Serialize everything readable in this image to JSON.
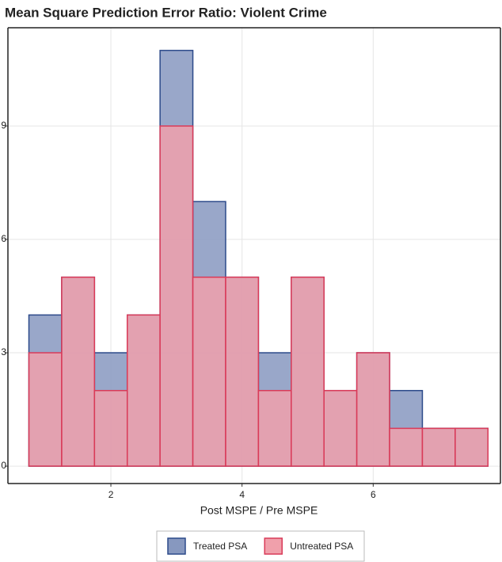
{
  "chart_data": {
    "type": "histogram",
    "title": "Mean Square Prediction Error Ratio: Violent Crime",
    "x_label": "Post MSPE / Pre MSPE",
    "bins": [
      0.75,
      1.25,
      1.75,
      2.25,
      2.75,
      3.25,
      3.75,
      4.25,
      4.75,
      5.25,
      5.75,
      6.25,
      6.75,
      7.25,
      7.75
    ],
    "series": [
      {
        "name": "Treated PSA",
        "color": "#2c4a8a",
        "fill": "#8798bf",
        "values": [
          4,
          5,
          3,
          4,
          11,
          7,
          5,
          3,
          5,
          2,
          3,
          2,
          1,
          1
        ]
      },
      {
        "name": "Untreated PSA",
        "color": "#d93a58",
        "fill": "#f0a0ab",
        "values": [
          3,
          5,
          2,
          4,
          9,
          5,
          5,
          2,
          5,
          2,
          3,
          1,
          1,
          1
        ]
      }
    ],
    "xlim": [
      0.43,
      7.94
    ],
    "ylim": [
      -0.46,
      11.6
    ],
    "xticks": [
      2,
      4,
      6
    ],
    "yticks": [
      0,
      3,
      6,
      9
    ],
    "grid": true,
    "legend": "bottom"
  }
}
